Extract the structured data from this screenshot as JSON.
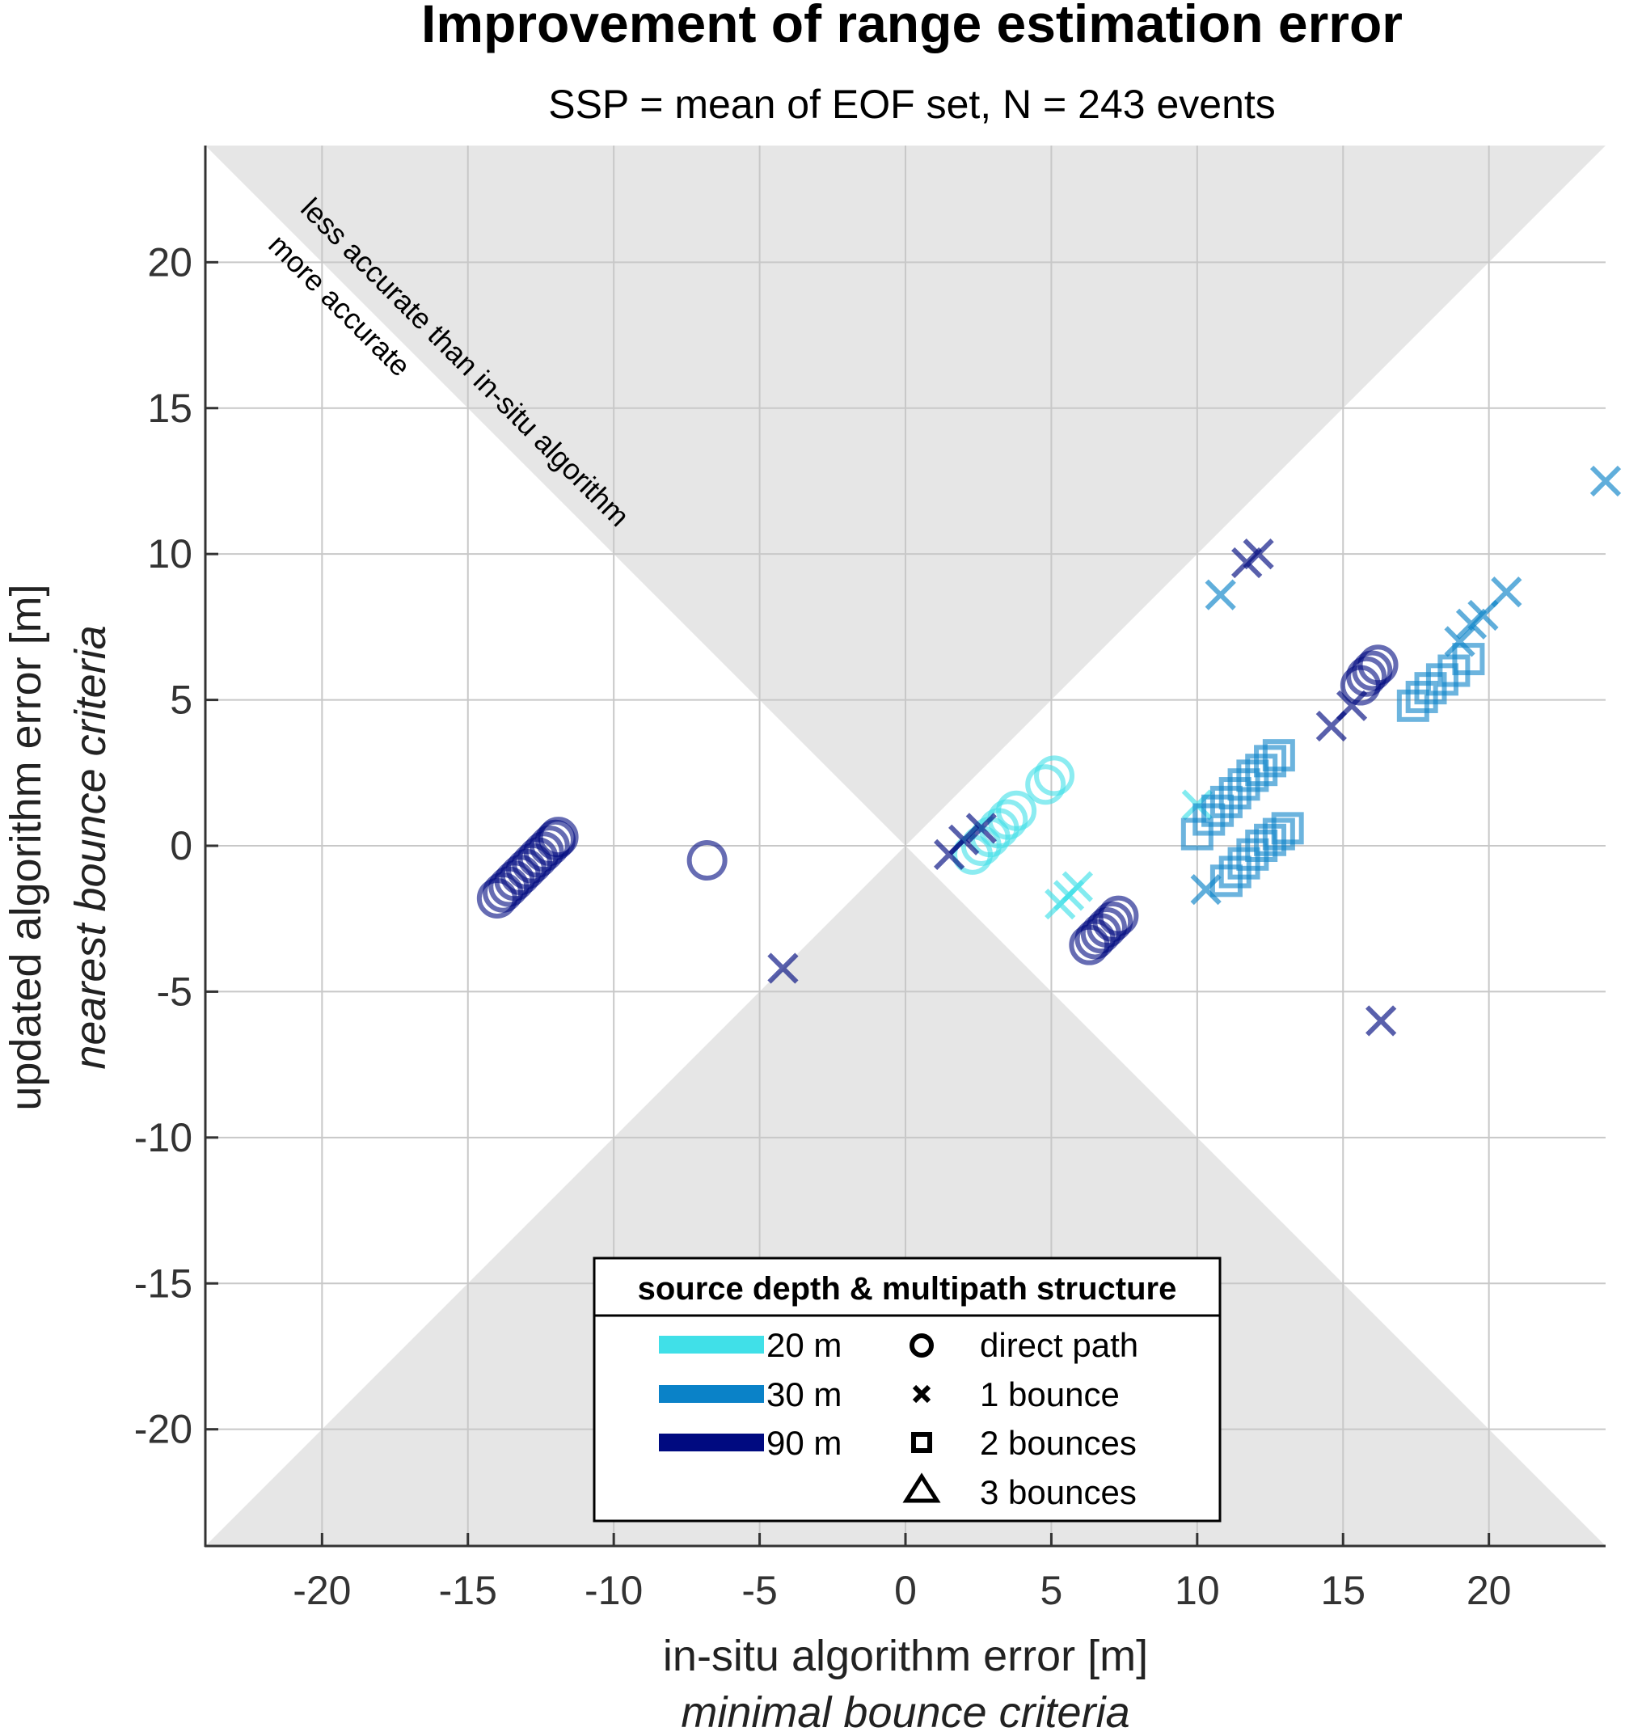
{
  "chart_data": {
    "type": "scatter",
    "title": "Improvement of range estimation error",
    "subtitle": "SSP = mean of EOF set, N = 243 events",
    "xlabel": "in-situ algorithm error [m]",
    "xlabel2": "minimal bounce criteria",
    "ylabel": "updated algorithm error [m]",
    "ylabel2": "nearest bounce criteria",
    "xlim": [
      -24,
      24
    ],
    "ylim": [
      -24,
      24
    ],
    "xticks": [
      -20,
      -15,
      -10,
      -5,
      0,
      5,
      10,
      15,
      20
    ],
    "yticks": [
      -20,
      -15,
      -10,
      -5,
      0,
      5,
      10,
      15,
      20
    ],
    "grid": true,
    "annotations": [
      "less accurate than in-situ algorithm",
      "more accurate"
    ],
    "colors": {
      "20 m": "#40e0e8",
      "30 m": "#0a82c8",
      "90 m": "#000a80",
      "shade": "#e6e6e6"
    },
    "legend": {
      "title": "source depth & multipath structure",
      "position": "bottom-center",
      "depths": [
        {
          "label": "20 m",
          "color": "#40e0e8"
        },
        {
          "label": "30 m",
          "color": "#0a82c8"
        },
        {
          "label": "90 m",
          "color": "#000a80"
        }
      ],
      "markers": [
        {
          "label": "direct path",
          "marker": "circle"
        },
        {
          "label": "1 bounce",
          "marker": "x"
        },
        {
          "label": "2 bounces",
          "marker": "square"
        },
        {
          "label": "3 bounces",
          "marker": "triangle"
        }
      ]
    },
    "series": [
      {
        "depth": "90 m",
        "marker": "circle",
        "color": "#000a80",
        "points": [
          [
            -14,
            -1.8
          ],
          [
            -13.8,
            -1.6
          ],
          [
            -13.6,
            -1.4
          ],
          [
            -13.4,
            -1.2
          ],
          [
            -13.2,
            -1.0
          ],
          [
            -13.0,
            -0.8
          ],
          [
            -12.8,
            -0.6
          ],
          [
            -12.6,
            -0.4
          ],
          [
            -12.4,
            -0.2
          ],
          [
            -12.2,
            0.0
          ],
          [
            -12.0,
            0.2
          ],
          [
            -11.9,
            0.3
          ],
          [
            -6.8,
            -0.5
          ],
          [
            6.3,
            -3.4
          ],
          [
            6.5,
            -3.2
          ],
          [
            6.7,
            -3.0
          ],
          [
            6.9,
            -2.8
          ],
          [
            7.1,
            -2.6
          ],
          [
            7.3,
            -2.4
          ],
          [
            15.6,
            5.5
          ],
          [
            15.8,
            5.8
          ],
          [
            16.0,
            6.0
          ],
          [
            16.2,
            6.2
          ]
        ]
      },
      {
        "depth": "20 m",
        "marker": "circle",
        "color": "#40e0e8",
        "points": [
          [
            2.3,
            -0.3
          ],
          [
            2.6,
            0.0
          ],
          [
            2.9,
            0.3
          ],
          [
            3.2,
            0.6
          ],
          [
            3.5,
            0.9
          ],
          [
            3.8,
            1.2
          ],
          [
            4.8,
            2.1
          ],
          [
            5.1,
            2.4
          ]
        ]
      },
      {
        "depth": "90 m",
        "marker": "x",
        "color": "#000a80",
        "points": [
          [
            -4.2,
            -4.2
          ],
          [
            1.5,
            -0.3
          ],
          [
            2.0,
            0.2
          ],
          [
            2.6,
            0.6
          ],
          [
            11.7,
            9.7
          ],
          [
            12.1,
            10.0
          ],
          [
            14.6,
            4.1
          ],
          [
            15.3,
            4.8
          ],
          [
            16.3,
            -6.0
          ]
        ]
      },
      {
        "depth": "20 m",
        "marker": "x",
        "color": "#40e0e8",
        "points": [
          [
            5.3,
            -2.0
          ],
          [
            5.6,
            -1.7
          ],
          [
            5.9,
            -1.4
          ],
          [
            10.0,
            1.4
          ]
        ]
      },
      {
        "depth": "30 m",
        "marker": "x",
        "color": "#0a82c8",
        "points": [
          [
            10.3,
            -1.5
          ],
          [
            10.8,
            8.6
          ],
          [
            19.0,
            7.0
          ],
          [
            19.4,
            7.6
          ],
          [
            19.8,
            7.9
          ],
          [
            20.6,
            8.7
          ],
          [
            24.0,
            12.5
          ]
        ]
      },
      {
        "depth": "30 m",
        "marker": "square",
        "color": "#0a82c8",
        "points": [
          [
            10.0,
            0.4
          ],
          [
            10.4,
            0.9
          ],
          [
            10.7,
            1.2
          ],
          [
            11.0,
            1.5
          ],
          [
            11.3,
            1.8
          ],
          [
            11.6,
            2.1
          ],
          [
            11.9,
            2.4
          ],
          [
            12.2,
            2.6
          ],
          [
            12.5,
            2.9
          ],
          [
            12.8,
            3.1
          ],
          [
            11.0,
            -1.2
          ],
          [
            11.3,
            -0.9
          ],
          [
            11.6,
            -0.6
          ],
          [
            11.9,
            -0.3
          ],
          [
            12.2,
            0.0
          ],
          [
            12.5,
            0.2
          ],
          [
            12.8,
            0.4
          ],
          [
            13.1,
            0.6
          ],
          [
            17.4,
            4.8
          ],
          [
            17.7,
            5.1
          ],
          [
            18.0,
            5.4
          ],
          [
            18.4,
            5.7
          ],
          [
            18.8,
            6.0
          ],
          [
            19.3,
            6.4
          ]
        ]
      }
    ]
  }
}
